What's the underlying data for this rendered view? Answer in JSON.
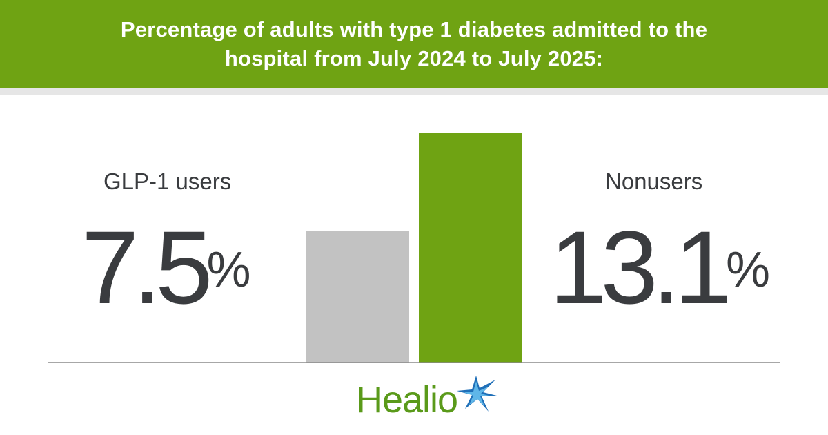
{
  "header": {
    "title": "Percentage of adults with type 1 diabetes admitted to the hospital from July 2024 to July 2025:"
  },
  "chart_data": {
    "type": "bar",
    "categories": [
      "GLP-1 users",
      "Nonusers"
    ],
    "values": [
      7.5,
      13.1
    ],
    "value_labels": [
      "7.5",
      "13.1"
    ],
    "unit": "%",
    "colors": [
      "#c2c2c2",
      "#6fa313"
    ],
    "ylim": [
      0,
      13.1
    ]
  },
  "logo": {
    "text": "Healio"
  }
}
